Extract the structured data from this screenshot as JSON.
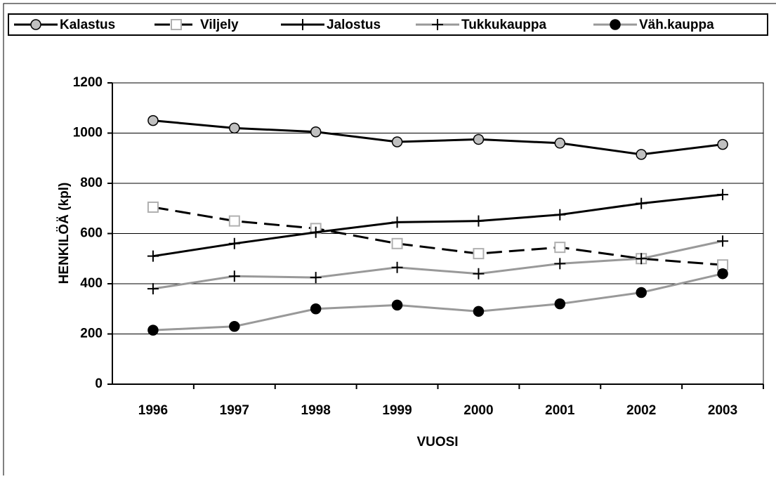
{
  "chart_data": {
    "type": "line",
    "x_label": "VUOSI",
    "y_label": "HENKILÖÄ (kpl)",
    "categories": [
      "1996",
      "1997",
      "1998",
      "1999",
      "2000",
      "2001",
      "2002",
      "2003"
    ],
    "series": [
      {
        "name": "Kalastus",
        "color": "#000000",
        "dashed": false,
        "marker": "circle",
        "marker_fill": "#c0c0c0",
        "marker_stroke": "#000000",
        "values": [
          1050,
          1020,
          1005,
          965,
          975,
          960,
          915,
          955
        ]
      },
      {
        "name": "Viljely",
        "color": "#000000",
        "dashed": true,
        "marker": "square",
        "marker_fill": "#ffffff",
        "marker_stroke": "#b0b0b0",
        "values": [
          705,
          650,
          620,
          560,
          520,
          545,
          500,
          475
        ]
      },
      {
        "name": "Jalostus",
        "color": "#000000",
        "dashed": false,
        "marker": "plus",
        "marker_fill": "#000000",
        "marker_stroke": "#000000",
        "values": [
          510,
          560,
          605,
          645,
          650,
          675,
          720,
          755
        ]
      },
      {
        "name": "Tukkukauppa",
        "color": "#999999",
        "dashed": false,
        "marker": "plus",
        "marker_fill": "#000000",
        "marker_stroke": "#000000",
        "values": [
          380,
          430,
          425,
          465,
          440,
          480,
          500,
          570
        ]
      },
      {
        "name": "Väh.kauppa",
        "color": "#999999",
        "dashed": false,
        "marker": "circle",
        "marker_fill": "#000000",
        "marker_stroke": "#000000",
        "values": [
          215,
          230,
          300,
          315,
          290,
          320,
          365,
          440
        ]
      }
    ],
    "ylim": [
      0,
      1200
    ],
    "yticks": [
      0,
      200,
      400,
      600,
      800,
      1000,
      1200
    ],
    "grid": true,
    "legend": "top"
  }
}
